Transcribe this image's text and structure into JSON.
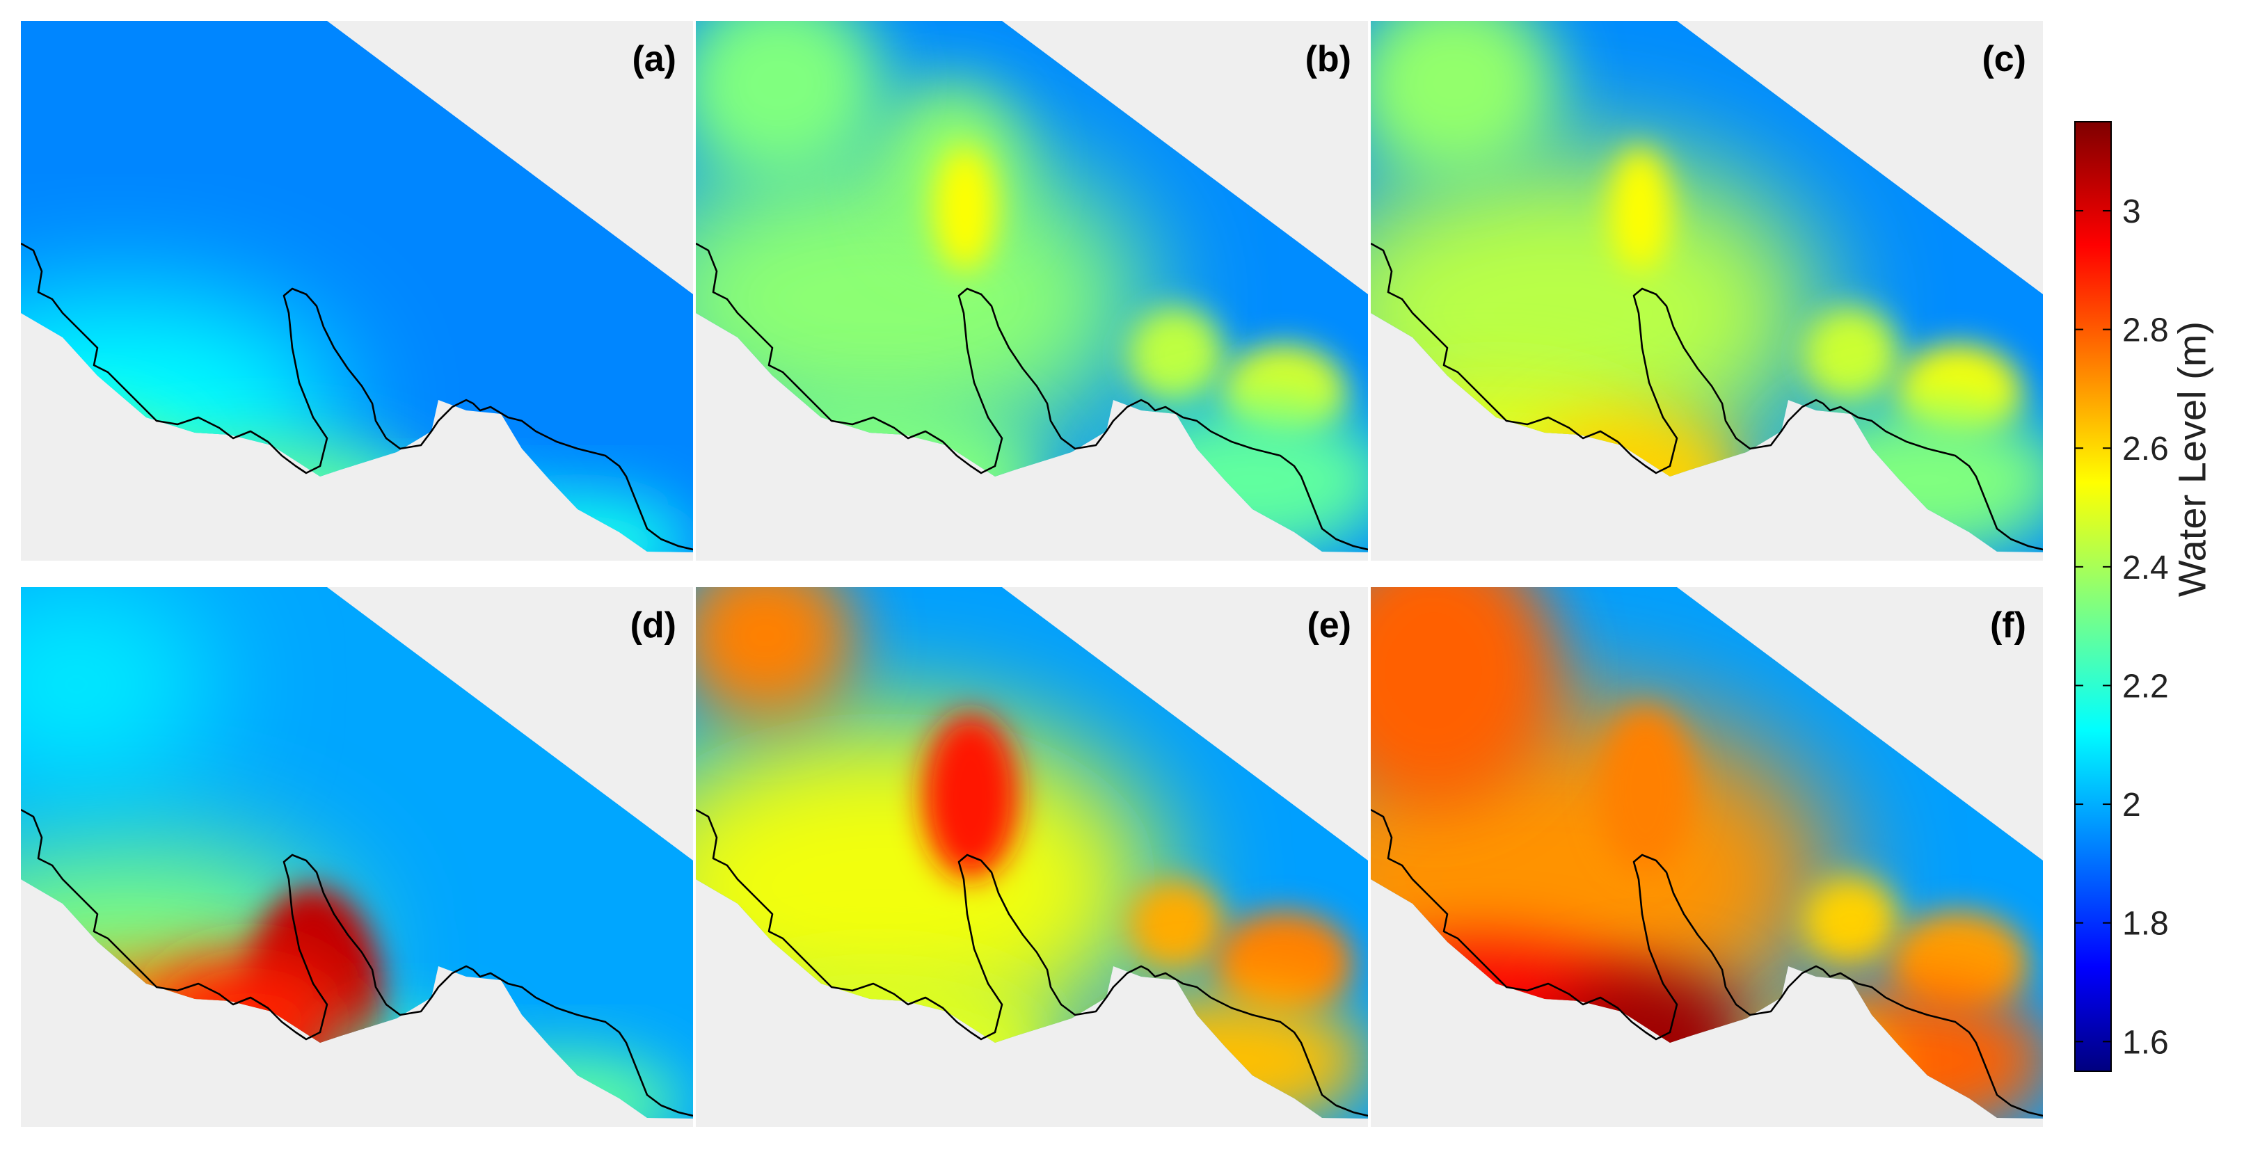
{
  "panels": [
    {
      "label": "(a)",
      "scenario": 0
    },
    {
      "label": "(b)",
      "scenario": 1
    },
    {
      "label": "(c)",
      "scenario": 2
    },
    {
      "label": "(d)",
      "scenario": 3
    },
    {
      "label": "(e)",
      "scenario": 4
    },
    {
      "label": "(f)",
      "scenario": 5
    }
  ],
  "colorbar": {
    "label": "Water Level (m)",
    "min": 1.55,
    "max": 3.15,
    "ticks": [
      "1.6",
      "1.8",
      "2",
      "2.2",
      "2.4",
      "2.6",
      "2.8",
      "3"
    ],
    "colormap": "jet"
  },
  "colors": {
    "background": "#efefef",
    "coastline": "#000000",
    "panel_label": "#000000"
  }
}
